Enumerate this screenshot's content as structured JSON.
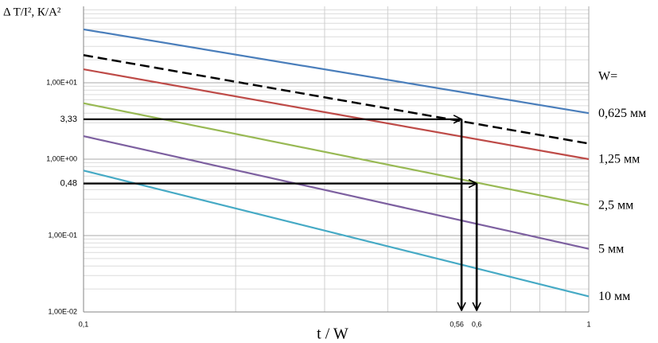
{
  "chart_data": {
    "type": "line",
    "y_title": "Δ T/I², К/А²",
    "x_title": "t / W",
    "legend_title": "W=",
    "log_x": true,
    "log_y": true,
    "grid": true,
    "xlim": [
      0.1,
      1
    ],
    "ylim": [
      0.01,
      100
    ],
    "xticks": [
      {
        "value": 0.1,
        "label": "0,1"
      },
      1
    ],
    "yticks": [
      {
        "value": 0.01,
        "label": "1,00E-02"
      },
      {
        "value": 0.1,
        "label": "1,00E-01"
      },
      {
        "value": 1,
        "label": "1,00E+00"
      },
      {
        "value": 10,
        "label": "1,00E+01"
      }
    ],
    "x": [
      0.1,
      1
    ],
    "series": [
      {
        "name": "0,625 мм",
        "color": "#4a7ebb",
        "values": [
          50,
          4
        ]
      },
      {
        "dash": true,
        "color": "#000000",
        "values": [
          23,
          1.6
        ]
      },
      {
        "name": "1,25 мм",
        "color": "#be4b48",
        "values": [
          15,
          1
        ]
      },
      {
        "name": "2,5 мм",
        "color": "#98b954",
        "values": [
          5.4,
          0.25
        ]
      },
      {
        "name": "5 мм",
        "color": "#7d60a0",
        "values": [
          2,
          0.067
        ]
      },
      {
        "name": "10 мм",
        "color": "#46aac5",
        "values": [
          0.71,
          0.016
        ]
      }
    ],
    "annotations": [
      {
        "y": {
          "value": 3.33,
          "label": "3,33"
        },
        "x": {
          "value": 0.56,
          "label": "0,56"
        }
      },
      {
        "y": {
          "value": 0.48,
          "label": "0,48"
        },
        "x": {
          "value": 0.6,
          "label": "0,6"
        }
      }
    ]
  }
}
